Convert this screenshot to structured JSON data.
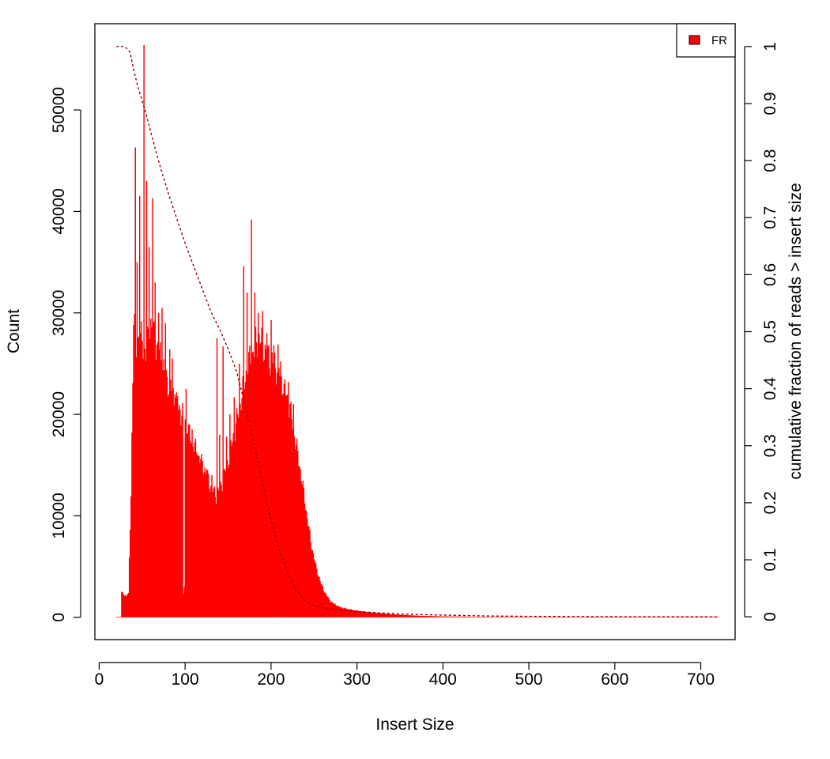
{
  "chart_data": {
    "type": "bar",
    "title": "",
    "xlabel": "Insert Size",
    "ylabel": "Count",
    "y2label": "cumulative fraction of reads > insert size",
    "xlim": [
      -5,
      740
    ],
    "ylim": [
      -2200,
      58500
    ],
    "y2lim": [
      -0.04,
      1.04
    ],
    "x_ticks": [
      0,
      100,
      200,
      300,
      400,
      500,
      600,
      700
    ],
    "y_ticks": [
      0,
      10000,
      20000,
      30000,
      40000,
      50000
    ],
    "y2_ticks": [
      0,
      0.1,
      0.2,
      0.3,
      0.4,
      0.5,
      0.6,
      0.7,
      0.8,
      0.9,
      1
    ],
    "grid": false,
    "legend_position": "top-right",
    "colors": {
      "bars": "#ff0000",
      "cumulative": "#8b0000",
      "axis": "#000000"
    },
    "series": [
      {
        "name": "FR",
        "kind": "histogram",
        "anchors": [
          [
            20,
            0
          ],
          [
            25,
            0
          ],
          [
            26,
            2500
          ],
          [
            30,
            2000
          ],
          [
            34,
            2500
          ],
          [
            37,
            12000
          ],
          [
            40,
            30000
          ],
          [
            43,
            26000
          ],
          [
            46,
            28000
          ],
          [
            50,
            27000
          ],
          [
            54,
            26000
          ],
          [
            60,
            29000
          ],
          [
            66,
            27000
          ],
          [
            72,
            25500
          ],
          [
            78,
            23500
          ],
          [
            84,
            22500
          ],
          [
            90,
            21000
          ],
          [
            96,
            20000
          ],
          [
            100,
            19500
          ],
          [
            106,
            17800
          ],
          [
            112,
            16500
          ],
          [
            118,
            15500
          ],
          [
            124,
            14300
          ],
          [
            130,
            12800
          ],
          [
            136,
            12000
          ],
          [
            142,
            13000
          ],
          [
            150,
            15500
          ],
          [
            158,
            18500
          ],
          [
            165,
            21500
          ],
          [
            172,
            24500
          ],
          [
            180,
            26500
          ],
          [
            186,
            27500
          ],
          [
            192,
            26500
          ],
          [
            198,
            25500
          ],
          [
            204,
            25000
          ],
          [
            210,
            24000
          ],
          [
            216,
            22500
          ],
          [
            222,
            20500
          ],
          [
            228,
            17500
          ],
          [
            234,
            14500
          ],
          [
            240,
            11000
          ],
          [
            246,
            7500
          ],
          [
            252,
            5000
          ],
          [
            258,
            3300
          ],
          [
            264,
            2200
          ],
          [
            270,
            1500
          ],
          [
            280,
            1000
          ],
          [
            290,
            800
          ],
          [
            300,
            650
          ],
          [
            320,
            450
          ],
          [
            340,
            300
          ],
          [
            360,
            200
          ],
          [
            380,
            130
          ],
          [
            400,
            90
          ],
          [
            450,
            40
          ],
          [
            500,
            15
          ],
          [
            550,
            5
          ],
          [
            600,
            2
          ],
          [
            720,
            0
          ]
        ],
        "peaks": [
          [
            26,
            2500
          ],
          [
            30,
            2200
          ],
          [
            34,
            2400
          ],
          [
            42,
            46300
          ],
          [
            44,
            35000
          ],
          [
            47,
            41500
          ],
          [
            52,
            56400
          ],
          [
            55,
            43000
          ],
          [
            58,
            36500
          ],
          [
            62,
            41300
          ],
          [
            65,
            33000
          ],
          [
            69,
            30000
          ],
          [
            73,
            30500
          ],
          [
            77,
            29000
          ],
          [
            82,
            26400
          ],
          [
            85,
            25500
          ],
          [
            88,
            22000
          ],
          [
            91,
            21800
          ],
          [
            94,
            20500
          ],
          [
            101,
            22500
          ],
          [
            104,
            19000
          ],
          [
            108,
            18500
          ],
          [
            114,
            16000
          ],
          [
            119,
            16100
          ],
          [
            125,
            14600
          ],
          [
            131,
            14000
          ],
          [
            137,
            27500
          ],
          [
            140,
            18000
          ],
          [
            144,
            26700
          ],
          [
            148,
            17800
          ],
          [
            152,
            20000
          ],
          [
            157,
            21700
          ],
          [
            163,
            25000
          ],
          [
            168,
            34600
          ],
          [
            172,
            32000
          ],
          [
            177,
            39200
          ],
          [
            181,
            32000
          ],
          [
            185,
            30000
          ],
          [
            190,
            30200
          ],
          [
            195,
            28000
          ],
          [
            200,
            29300
          ],
          [
            203,
            26800
          ],
          [
            208,
            26900
          ],
          [
            211,
            25200
          ],
          [
            215,
            23000
          ],
          [
            220,
            23200
          ],
          [
            226,
            21000
          ]
        ],
        "dips": [
          [
            98,
            2300
          ],
          [
            99,
            3000
          ]
        ]
      },
      {
        "name": "cumulative fraction of reads > insert size",
        "kind": "line",
        "points": [
          [
            20,
            1.0
          ],
          [
            30,
            1.0
          ],
          [
            36,
            0.99
          ],
          [
            40,
            0.96
          ],
          [
            45,
            0.93
          ],
          [
            50,
            0.905
          ],
          [
            55,
            0.88
          ],
          [
            60,
            0.85
          ],
          [
            70,
            0.795
          ],
          [
            80,
            0.745
          ],
          [
            90,
            0.7
          ],
          [
            100,
            0.655
          ],
          [
            110,
            0.615
          ],
          [
            120,
            0.575
          ],
          [
            130,
            0.535
          ],
          [
            140,
            0.505
          ],
          [
            150,
            0.47
          ],
          [
            160,
            0.43
          ],
          [
            170,
            0.37
          ],
          [
            180,
            0.305
          ],
          [
            190,
            0.235
          ],
          [
            200,
            0.17
          ],
          [
            210,
            0.115
          ],
          [
            220,
            0.075
          ],
          [
            230,
            0.045
          ],
          [
            240,
            0.028
          ],
          [
            250,
            0.02
          ],
          [
            260,
            0.016
          ],
          [
            280,
            0.012
          ],
          [
            300,
            0.009
          ],
          [
            350,
            0.005
          ],
          [
            400,
            0.003
          ],
          [
            450,
            0.0015
          ],
          [
            500,
            0.0008
          ],
          [
            600,
            0.0002
          ],
          [
            720,
            0.0
          ]
        ]
      }
    ]
  }
}
